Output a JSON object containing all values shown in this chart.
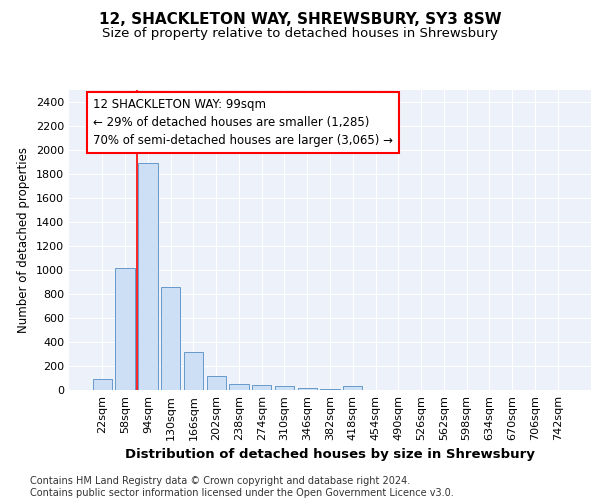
{
  "title1": "12, SHACKLETON WAY, SHREWSBURY, SY3 8SW",
  "title2": "Size of property relative to detached houses in Shrewsbury",
  "xlabel": "Distribution of detached houses by size in Shrewsbury",
  "ylabel": "Number of detached properties",
  "footnote": "Contains HM Land Registry data © Crown copyright and database right 2024.\nContains public sector information licensed under the Open Government Licence v3.0.",
  "bar_labels": [
    "22sqm",
    "58sqm",
    "94sqm",
    "130sqm",
    "166sqm",
    "202sqm",
    "238sqm",
    "274sqm",
    "310sqm",
    "346sqm",
    "382sqm",
    "418sqm",
    "454sqm",
    "490sqm",
    "526sqm",
    "562sqm",
    "598sqm",
    "634sqm",
    "670sqm",
    "706sqm",
    "742sqm"
  ],
  "bar_values": [
    90,
    1020,
    1890,
    860,
    320,
    115,
    50,
    40,
    30,
    20,
    10,
    30,
    0,
    0,
    0,
    0,
    0,
    0,
    0,
    0,
    0
  ],
  "bar_color": "#cddff5",
  "bar_edge_color": "#6699cc",
  "red_line_x": 1.5,
  "annotation_text": "12 SHACKLETON WAY: 99sqm\n← 29% of detached houses are smaller (1,285)\n70% of semi-detached houses are larger (3,065) →",
  "ylim": [
    0,
    2500
  ],
  "yticks": [
    0,
    200,
    400,
    600,
    800,
    1000,
    1200,
    1400,
    1600,
    1800,
    2000,
    2200,
    2400
  ],
  "bg_color": "#edf2fa",
  "grid_color": "#ffffff",
  "title1_fontsize": 11,
  "title2_fontsize": 9.5,
  "ylabel_fontsize": 8.5,
  "xlabel_fontsize": 9.5,
  "tick_fontsize": 8,
  "footnote_fontsize": 7
}
